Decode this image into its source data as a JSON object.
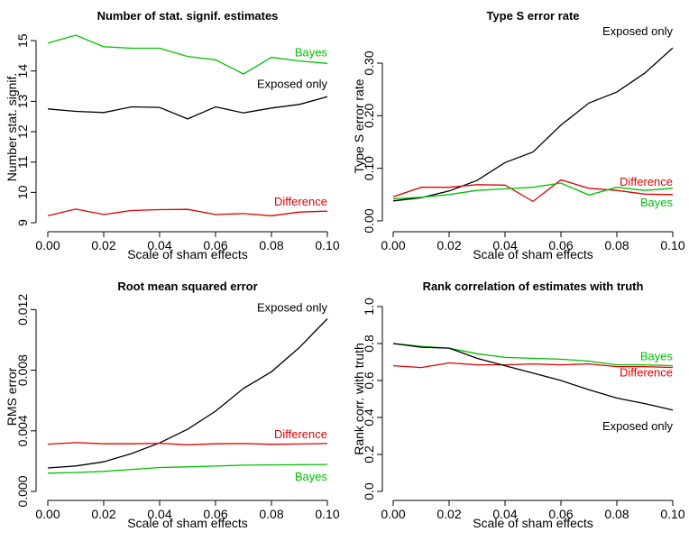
{
  "chart_data": [
    {
      "type": "line",
      "title": "Number of stat. signif. estimates",
      "xlabel": "Scale of sham effects",
      "ylabel": "Number stat. signif.",
      "xlim": [
        0,
        0.1
      ],
      "ylim": [
        9,
        15.3
      ],
      "x_ticks": [
        "0.00",
        "0.02",
        "0.04",
        "0.06",
        "0.08",
        "0.10"
      ],
      "y_ticks": [
        "9",
        "10",
        "11",
        "12",
        "13",
        "14",
        "15"
      ],
      "x": [
        0.0,
        0.01,
        0.02,
        0.03,
        0.04,
        0.05,
        0.06,
        0.07,
        0.08,
        0.09,
        0.1
      ],
      "series": [
        {
          "name": "Bayes",
          "color": "#00c000",
          "values": [
            14.92,
            15.18,
            14.8,
            14.75,
            14.75,
            14.48,
            14.37,
            13.9,
            14.45,
            14.33,
            14.25
          ]
        },
        {
          "name": "Exposed only",
          "color": "#000000",
          "values": [
            12.75,
            12.67,
            12.63,
            12.82,
            12.8,
            12.42,
            12.82,
            12.62,
            12.78,
            12.9,
            13.15
          ]
        },
        {
          "name": "Difference",
          "color": "#e00000",
          "values": [
            9.23,
            9.45,
            9.27,
            9.4,
            9.43,
            9.44,
            9.27,
            9.3,
            9.23,
            9.35,
            9.38
          ]
        }
      ],
      "grid": false
    },
    {
      "type": "line",
      "title": "Type S error rate",
      "xlabel": "Scale of sham effects",
      "ylabel": "Type S error rate",
      "xlim": [
        0,
        0.1
      ],
      "ylim": [
        0,
        0.36
      ],
      "x_ticks": [
        "0.00",
        "0.02",
        "0.04",
        "0.06",
        "0.08",
        "0.10"
      ],
      "y_ticks": [
        "0.00",
        "0.10",
        "0.20",
        "0.30"
      ],
      "x": [
        0.0,
        0.01,
        0.02,
        0.03,
        0.04,
        0.05,
        0.06,
        0.07,
        0.08,
        0.09,
        0.1
      ],
      "series": [
        {
          "name": "Exposed only",
          "color": "#000000",
          "values": [
            0.038,
            0.044,
            0.057,
            0.077,
            0.111,
            0.131,
            0.182,
            0.224,
            0.245,
            0.281,
            0.329
          ]
        },
        {
          "name": "Difference",
          "color": "#e00000",
          "values": [
            0.046,
            0.064,
            0.064,
            0.069,
            0.068,
            0.037,
            0.078,
            0.062,
            0.058,
            0.051,
            0.05
          ]
        },
        {
          "name": "Bayes",
          "color": "#00c000",
          "values": [
            0.042,
            0.045,
            0.05,
            0.058,
            0.061,
            0.064,
            0.072,
            0.049,
            0.064,
            0.058,
            0.062
          ]
        }
      ],
      "grid": false
    },
    {
      "type": "line",
      "title": "Root mean squared error",
      "xlabel": "Scale of sham effects",
      "ylabel": "RMS error",
      "xlim": [
        0,
        0.1
      ],
      "ylim": [
        0,
        0.0125
      ],
      "x_ticks": [
        "0.00",
        "0.02",
        "0.04",
        "0.06",
        "0.08",
        "0.10"
      ],
      "y_ticks": [
        "0.000",
        "0.004",
        "0.008",
        "0.012"
      ],
      "x": [
        0.0,
        0.01,
        0.02,
        0.03,
        0.04,
        0.05,
        0.06,
        0.07,
        0.08,
        0.09,
        0.1
      ],
      "series": [
        {
          "name": "Exposed only",
          "color": "#000000",
          "values": [
            0.00155,
            0.00168,
            0.00195,
            0.0025,
            0.0032,
            0.0041,
            0.0053,
            0.0068,
            0.0079,
            0.0095,
            0.0114
          ]
        },
        {
          "name": "Difference",
          "color": "#e00000",
          "values": [
            0.00312,
            0.00322,
            0.00314,
            0.00314,
            0.00318,
            0.00308,
            0.00314,
            0.00316,
            0.00311,
            0.00313,
            0.00316
          ]
        },
        {
          "name": "Bayes",
          "color": "#00c000",
          "values": [
            0.0012,
            0.00125,
            0.00132,
            0.00145,
            0.00158,
            0.00162,
            0.00167,
            0.00173,
            0.00175,
            0.00176,
            0.00178
          ]
        }
      ],
      "grid": false
    },
    {
      "type": "line",
      "title": "Rank correlation of estimates with truth",
      "xlabel": "Scale of sham effects",
      "ylabel": "Rank corr. with truth",
      "xlim": [
        0,
        0.1
      ],
      "ylim": [
        0,
        1.0
      ],
      "x_ticks": [
        "0.00",
        "0.02",
        "0.04",
        "0.06",
        "0.08",
        "0.10"
      ],
      "y_ticks": [
        "0.0",
        "0.2",
        "0.4",
        "0.6",
        "0.8",
        "1.0"
      ],
      "x": [
        0.0,
        0.01,
        0.02,
        0.03,
        0.04,
        0.05,
        0.06,
        0.07,
        0.08,
        0.09,
        0.1
      ],
      "series": [
        {
          "name": "Bayes",
          "color": "#00c000",
          "values": [
            0.8,
            0.785,
            0.775,
            0.745,
            0.725,
            0.72,
            0.715,
            0.705,
            0.685,
            0.685,
            0.68
          ]
        },
        {
          "name": "Difference",
          "color": "#e00000",
          "values": [
            0.68,
            0.67,
            0.695,
            0.685,
            0.685,
            0.69,
            0.685,
            0.69,
            0.675,
            0.675,
            0.67
          ]
        },
        {
          "name": "Exposed only",
          "color": "#000000",
          "values": [
            0.8,
            0.78,
            0.775,
            0.72,
            0.68,
            0.64,
            0.6,
            0.55,
            0.505,
            0.475,
            0.44
          ]
        }
      ],
      "grid": false
    }
  ]
}
